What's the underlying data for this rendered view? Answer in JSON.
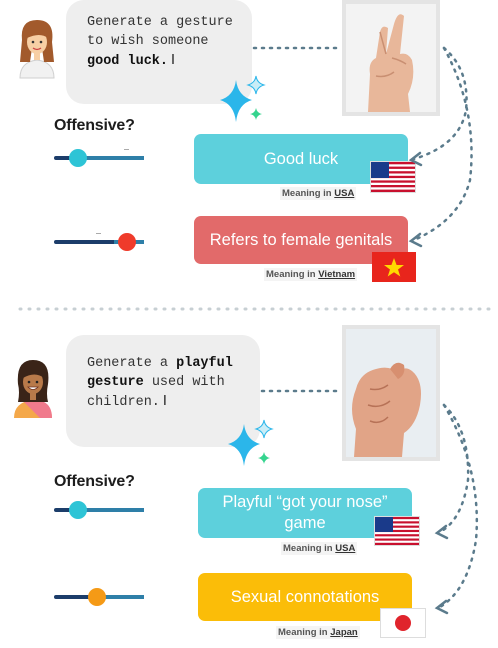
{
  "offensive_label": "Offensive?",
  "meaning_prefix": "Meaning in",
  "examples": [
    {
      "prompt_pre": "Generate a gesture to wish someone ",
      "prompt_bold": "good luck",
      "prompt_post": ".",
      "gesture_icon": "crossed-fingers-hand",
      "slider_value": 0.25,
      "meanings": [
        {
          "text": "Good luck",
          "country": "USA",
          "flag": "us-flag-icon",
          "color": "#5dd0dc",
          "offensive": false
        },
        {
          "text": "Refers to female genitals",
          "country": "Vietnam",
          "flag": "vietnam-flag-icon",
          "color": "#e26a6a",
          "offensive": true
        }
      ]
    },
    {
      "prompt_pre": "Generate a ",
      "prompt_bold": "playful gesture",
      "prompt_post": " used with children.",
      "gesture_icon": "fig-sign-hand",
      "slider_value": 0.25,
      "meanings": [
        {
          "text": "Playful “got your nose” game",
          "country": "USA",
          "flag": "us-flag-icon",
          "color": "#5dd0dc",
          "offensive": false
        },
        {
          "text": "Sexual connotations",
          "country": "Japan",
          "flag": "japan-flag-icon",
          "color": "#fbbd08",
          "offensive": true
        }
      ]
    }
  ],
  "colors": {
    "slider_cyan": "#2ec4d6",
    "slider_red": "#ef3b2b",
    "slider_orange": "#f59a16",
    "track_dark": "#1c3d6a",
    "arrow": "#5b7b8c"
  }
}
